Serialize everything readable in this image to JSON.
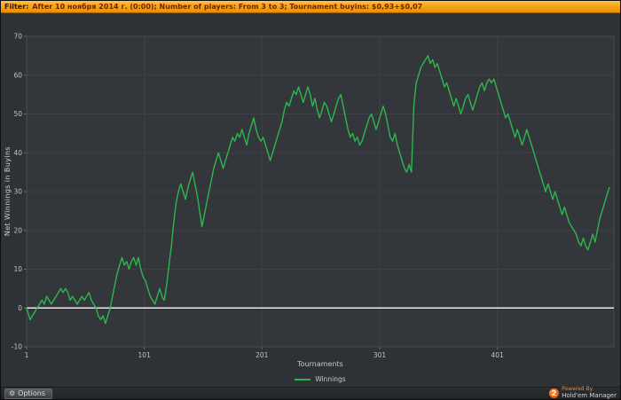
{
  "filter_bar": {
    "label": "Filter:",
    "text": "After 10 ноября 2014 г. (0:00); Number of players: From 3 to 3; Tournament buyins: $0,93+$0,07"
  },
  "footer": {
    "options_label": "Options",
    "gear_icon": "⚙",
    "logo_text": "2",
    "powered_by_line1": "Powered By",
    "powered_by_line2": "Hold'em Manager"
  },
  "colors": {
    "winnings_line": "#2eb64e",
    "zero_line": "#e9eaeb",
    "grid": "#3d4145",
    "plot_background": "#33373b",
    "window_background": "#2e3236",
    "filter_bar_orange": "#f6a61c",
    "logo_orange": "#e85a10",
    "axis_text": "#bfc3c7"
  },
  "chart_data": {
    "type": "line",
    "title": "",
    "xlabel": "Tournaments",
    "ylabel": "Net Winnings in Buyins",
    "xlim": [
      1,
      500
    ],
    "ylim": [
      -10,
      70
    ],
    "xticks": [
      1,
      101,
      201,
      301,
      401
    ],
    "yticks": [
      70,
      60,
      50,
      40,
      30,
      20,
      10,
      0,
      -10
    ],
    "grid": true,
    "zero_line": 0,
    "legend": {
      "position": "bottom",
      "entries": [
        {
          "label": "Winnings",
          "color": "#2eb64e"
        }
      ]
    },
    "series": [
      {
        "name": "Winnings",
        "color": "#2eb64e",
        "points": [
          [
            1,
            0
          ],
          [
            2,
            -1
          ],
          [
            4,
            -3
          ],
          [
            6,
            -2
          ],
          [
            8,
            -1
          ],
          [
            10,
            0
          ],
          [
            12,
            1
          ],
          [
            14,
            2
          ],
          [
            16,
            1
          ],
          [
            18,
            3
          ],
          [
            20,
            2
          ],
          [
            22,
            1
          ],
          [
            24,
            2
          ],
          [
            26,
            3
          ],
          [
            28,
            4
          ],
          [
            30,
            5
          ],
          [
            32,
            4
          ],
          [
            34,
            5
          ],
          [
            36,
            4
          ],
          [
            38,
            2
          ],
          [
            40,
            3
          ],
          [
            42,
            2
          ],
          [
            44,
            1
          ],
          [
            46,
            2
          ],
          [
            48,
            3
          ],
          [
            50,
            2
          ],
          [
            52,
            3
          ],
          [
            54,
            4
          ],
          [
            56,
            2
          ],
          [
            58,
            1
          ],
          [
            60,
            0
          ],
          [
            62,
            -2
          ],
          [
            64,
            -3
          ],
          [
            66,
            -2
          ],
          [
            68,
            -4
          ],
          [
            70,
            -2
          ],
          [
            72,
            0
          ],
          [
            74,
            3
          ],
          [
            76,
            6
          ],
          [
            78,
            9
          ],
          [
            80,
            11
          ],
          [
            82,
            13
          ],
          [
            84,
            11
          ],
          [
            86,
            12
          ],
          [
            88,
            10
          ],
          [
            90,
            12
          ],
          [
            92,
            13
          ],
          [
            94,
            11
          ],
          [
            96,
            13
          ],
          [
            98,
            10
          ],
          [
            100,
            8
          ],
          [
            102,
            7
          ],
          [
            104,
            5
          ],
          [
            106,
            3
          ],
          [
            108,
            2
          ],
          [
            110,
            1
          ],
          [
            112,
            3
          ],
          [
            114,
            5
          ],
          [
            116,
            3
          ],
          [
            118,
            2
          ],
          [
            120,
            6
          ],
          [
            122,
            11
          ],
          [
            124,
            16
          ],
          [
            126,
            22
          ],
          [
            128,
            27
          ],
          [
            130,
            30
          ],
          [
            132,
            32
          ],
          [
            134,
            30
          ],
          [
            136,
            28
          ],
          [
            138,
            31
          ],
          [
            140,
            33
          ],
          [
            142,
            35
          ],
          [
            144,
            32
          ],
          [
            146,
            29
          ],
          [
            148,
            25
          ],
          [
            150,
            21
          ],
          [
            152,
            24
          ],
          [
            154,
            27
          ],
          [
            156,
            30
          ],
          [
            158,
            33
          ],
          [
            160,
            36
          ],
          [
            162,
            38
          ],
          [
            164,
            40
          ],
          [
            166,
            38
          ],
          [
            168,
            36
          ],
          [
            170,
            38
          ],
          [
            172,
            40
          ],
          [
            174,
            42
          ],
          [
            176,
            44
          ],
          [
            178,
            43
          ],
          [
            180,
            45
          ],
          [
            182,
            44
          ],
          [
            184,
            46
          ],
          [
            186,
            44
          ],
          [
            188,
            42
          ],
          [
            190,
            45
          ],
          [
            192,
            47
          ],
          [
            194,
            49
          ],
          [
            196,
            46
          ],
          [
            198,
            44
          ],
          [
            200,
            43
          ],
          [
            202,
            44
          ],
          [
            204,
            42
          ],
          [
            206,
            40
          ],
          [
            208,
            38
          ],
          [
            210,
            40
          ],
          [
            212,
            42
          ],
          [
            214,
            44
          ],
          [
            216,
            46
          ],
          [
            218,
            48
          ],
          [
            220,
            51
          ],
          [
            222,
            53
          ],
          [
            224,
            52
          ],
          [
            226,
            54
          ],
          [
            228,
            56
          ],
          [
            230,
            55
          ],
          [
            232,
            57
          ],
          [
            234,
            55
          ],
          [
            236,
            53
          ],
          [
            238,
            55
          ],
          [
            240,
            57
          ],
          [
            242,
            55
          ],
          [
            244,
            52
          ],
          [
            246,
            54
          ],
          [
            248,
            51
          ],
          [
            250,
            49
          ],
          [
            252,
            51
          ],
          [
            254,
            53
          ],
          [
            256,
            52
          ],
          [
            258,
            50
          ],
          [
            260,
            48
          ],
          [
            262,
            50
          ],
          [
            264,
            52
          ],
          [
            266,
            54
          ],
          [
            268,
            55
          ],
          [
            270,
            52
          ],
          [
            272,
            49
          ],
          [
            274,
            46
          ],
          [
            276,
            44
          ],
          [
            278,
            45
          ],
          [
            280,
            43
          ],
          [
            282,
            44
          ],
          [
            284,
            42
          ],
          [
            286,
            43
          ],
          [
            288,
            45
          ],
          [
            290,
            47
          ],
          [
            292,
            49
          ],
          [
            294,
            50
          ],
          [
            296,
            48
          ],
          [
            298,
            46
          ],
          [
            300,
            48
          ],
          [
            302,
            50
          ],
          [
            304,
            52
          ],
          [
            306,
            50
          ],
          [
            308,
            47
          ],
          [
            310,
            44
          ],
          [
            312,
            43
          ],
          [
            314,
            45
          ],
          [
            316,
            42
          ],
          [
            318,
            40
          ],
          [
            320,
            38
          ],
          [
            322,
            36
          ],
          [
            324,
            35
          ],
          [
            326,
            37
          ],
          [
            328,
            35
          ],
          [
            330,
            52
          ],
          [
            332,
            58
          ],
          [
            334,
            60
          ],
          [
            336,
            62
          ],
          [
            338,
            63
          ],
          [
            340,
            64
          ],
          [
            342,
            65
          ],
          [
            344,
            63
          ],
          [
            346,
            64
          ],
          [
            348,
            62
          ],
          [
            350,
            63
          ],
          [
            352,
            61
          ],
          [
            354,
            59
          ],
          [
            356,
            57
          ],
          [
            358,
            58
          ],
          [
            360,
            56
          ],
          [
            362,
            54
          ],
          [
            364,
            52
          ],
          [
            366,
            54
          ],
          [
            368,
            52
          ],
          [
            370,
            50
          ],
          [
            372,
            52
          ],
          [
            374,
            54
          ],
          [
            376,
            55
          ],
          [
            378,
            53
          ],
          [
            380,
            51
          ],
          [
            382,
            53
          ],
          [
            384,
            55
          ],
          [
            386,
            57
          ],
          [
            388,
            58
          ],
          [
            390,
            56
          ],
          [
            392,
            58
          ],
          [
            394,
            59
          ],
          [
            396,
            58
          ],
          [
            398,
            59
          ],
          [
            400,
            57
          ],
          [
            402,
            55
          ],
          [
            404,
            53
          ],
          [
            406,
            51
          ],
          [
            408,
            49
          ],
          [
            410,
            50
          ],
          [
            412,
            48
          ],
          [
            414,
            46
          ],
          [
            416,
            44
          ],
          [
            418,
            46
          ],
          [
            420,
            44
          ],
          [
            422,
            42
          ],
          [
            424,
            44
          ],
          [
            426,
            46
          ],
          [
            428,
            44
          ],
          [
            430,
            42
          ],
          [
            432,
            40
          ],
          [
            434,
            38
          ],
          [
            436,
            36
          ],
          [
            438,
            34
          ],
          [
            440,
            32
          ],
          [
            442,
            30
          ],
          [
            444,
            32
          ],
          [
            446,
            30
          ],
          [
            448,
            28
          ],
          [
            450,
            30
          ],
          [
            452,
            28
          ],
          [
            454,
            26
          ],
          [
            456,
            24
          ],
          [
            458,
            26
          ],
          [
            460,
            24
          ],
          [
            462,
            22
          ],
          [
            464,
            21
          ],
          [
            466,
            20
          ],
          [
            468,
            19
          ],
          [
            470,
            17
          ],
          [
            472,
            16
          ],
          [
            474,
            18
          ],
          [
            476,
            16
          ],
          [
            478,
            15
          ],
          [
            480,
            17
          ],
          [
            482,
            19
          ],
          [
            484,
            17
          ],
          [
            486,
            20
          ],
          [
            488,
            23
          ],
          [
            490,
            25
          ],
          [
            492,
            27
          ],
          [
            494,
            29
          ],
          [
            496,
            31
          ]
        ]
      }
    ]
  }
}
